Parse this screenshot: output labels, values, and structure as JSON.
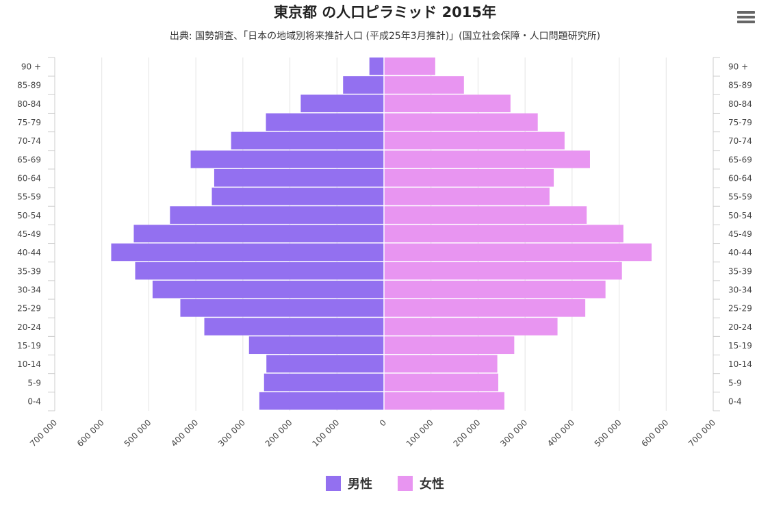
{
  "menu": {
    "icon": "hamburger-menu-icon"
  },
  "chart_data": {
    "type": "bar",
    "orientation": "horizontal",
    "title": "東京都 の人口ピラミッド 2015年",
    "subtitle": "出典: 国勢調査、「日本の地域別将来推計人口 (平成25年3月推計)」(国立社会保障・人口問題研究所)",
    "categories": [
      "0-4",
      "5-9",
      "10-14",
      "15-19",
      "20-24",
      "25-29",
      "30-34",
      "35-39",
      "40-44",
      "45-49",
      "50-54",
      "55-59",
      "60-64",
      "65-69",
      "70-74",
      "75-79",
      "80-84",
      "85-89",
      "90 +"
    ],
    "series": [
      {
        "name": "男性",
        "color": "#9370f0",
        "values": [
          265000,
          255000,
          250000,
          287000,
          382000,
          433000,
          492000,
          529000,
          580000,
          532000,
          455000,
          366000,
          361000,
          411000,
          325000,
          251000,
          177000,
          87000,
          31000
        ]
      },
      {
        "name": "女性",
        "color": "#e895f1",
        "values": [
          256000,
          243000,
          241000,
          277000,
          369000,
          428000,
          471000,
          506000,
          569000,
          509000,
          431000,
          352000,
          361000,
          438000,
          384000,
          327000,
          269000,
          170000,
          109000
        ]
      }
    ],
    "xlim": [
      -700000,
      700000
    ],
    "xticks": [
      -700000,
      -600000,
      -500000,
      -400000,
      -300000,
      -200000,
      -100000,
      0,
      100000,
      200000,
      300000,
      400000,
      500000,
      600000,
      700000
    ],
    "xtick_labels": [
      "700 000",
      "600 000",
      "500 000",
      "400 000",
      "300 000",
      "200 000",
      "100 000",
      "0",
      "100 000",
      "200 000",
      "300 000",
      "400 000",
      "500 000",
      "600 000",
      "700 000"
    ],
    "grid": true,
    "legend": "bottom-center"
  }
}
